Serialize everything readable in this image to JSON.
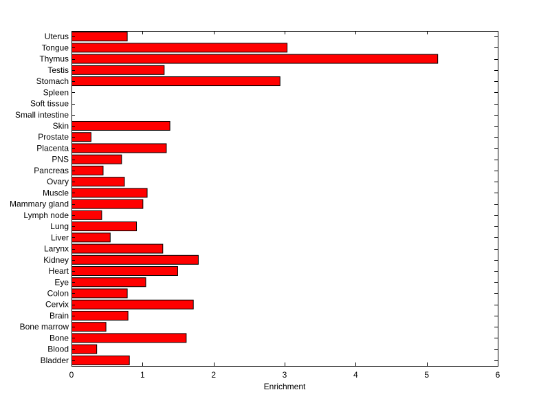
{
  "chart_data": {
    "type": "bar",
    "orientation": "horizontal",
    "title": "",
    "xlabel": "Enrichment",
    "ylabel": "",
    "xlim": [
      0,
      6
    ],
    "xticks": [
      0,
      1,
      2,
      3,
      4,
      5,
      6
    ],
    "grid": false,
    "legend": "none",
    "bar_color": "#ff0000",
    "bar_edge_color": "#000000",
    "categories": [
      "Uterus",
      "Tongue",
      "Thymus",
      "Testis",
      "Stomach",
      "Spleen",
      "Soft tissue",
      "Small intestine",
      "Skin",
      "Prostate",
      "Placenta",
      "PNS",
      "Pancreas",
      "Ovary",
      "Muscle",
      "Mammary gland",
      "Lymph node",
      "Lung",
      "Liver",
      "Larynx",
      "Kidney",
      "Heart",
      "Eye",
      "Colon",
      "Cervix",
      "Brain",
      "Bone marrow",
      "Bone",
      "Blood",
      "Bladder"
    ],
    "values": [
      0.78,
      3.03,
      5.15,
      1.3,
      2.93,
      0,
      0,
      0,
      1.38,
      0.27,
      1.33,
      0.7,
      0.44,
      0.74,
      1.06,
      1.0,
      0.42,
      0.91,
      0.54,
      1.28,
      1.78,
      1.49,
      1.04,
      0.78,
      1.71,
      0.79,
      0.48,
      1.61,
      0.35,
      0.81
    ]
  }
}
